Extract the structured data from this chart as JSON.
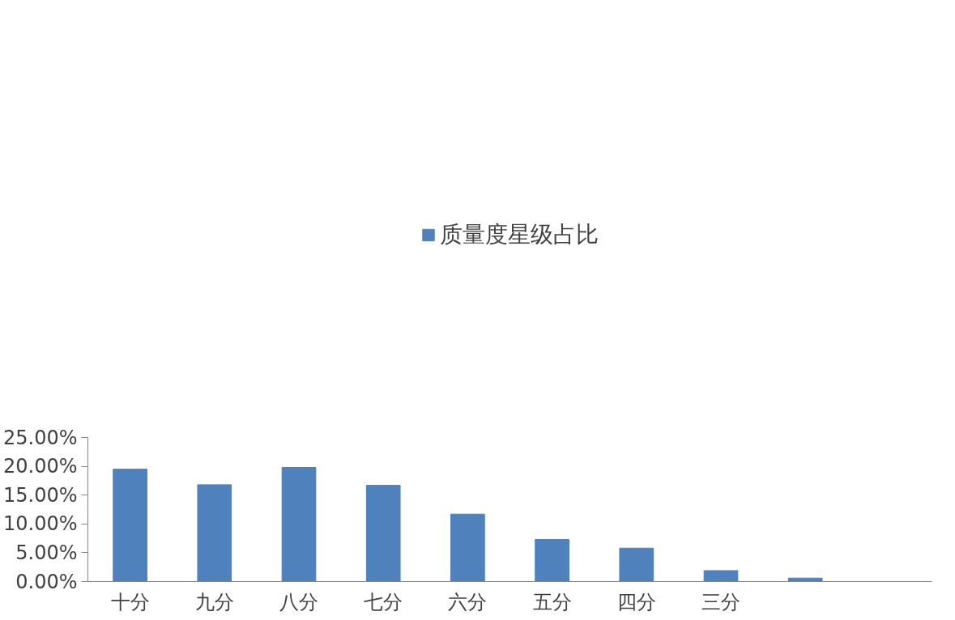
{
  "chart_data": {
    "type": "bar",
    "categories": [
      "十分",
      "九分",
      "八分",
      "七分",
      "六分",
      "五分",
      "四分",
      "三分",
      null,
      null
    ],
    "series": [
      {
        "name": "质量度星级占比",
        "color": "#4f81bd",
        "values": [
          19.5,
          16.8,
          19.8,
          16.7,
          11.7,
          7.3,
          5.8,
          1.9,
          0.6,
          0
        ]
      }
    ],
    "ylim": [
      0,
      25
    ],
    "yticks": [
      {
        "value": 0,
        "label": "0.00%"
      },
      {
        "value": 5,
        "label": "5.00%"
      },
      {
        "value": 10,
        "label": "10.00%"
      },
      {
        "value": 15,
        "label": "15.00%"
      },
      {
        "value": 20,
        "label": "20.00%"
      },
      {
        "value": 25,
        "label": "25.00%"
      }
    ],
    "legend": "top",
    "grid": false
  }
}
